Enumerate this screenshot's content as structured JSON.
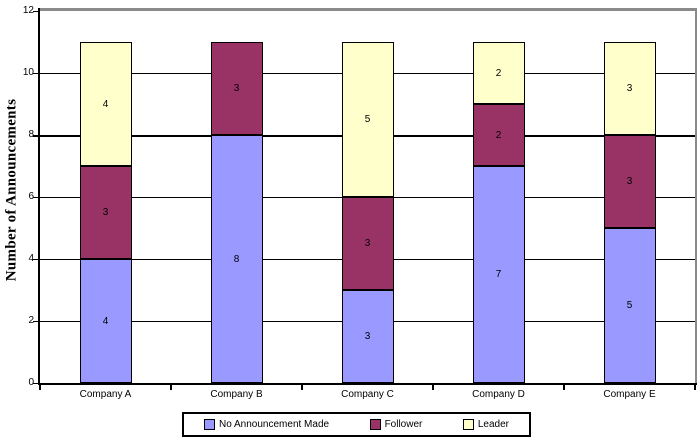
{
  "chart_data": {
    "type": "bar",
    "stacked": true,
    "title": "",
    "xlabel": "",
    "ylabel": "Number of Announcements",
    "categories": [
      "Company A",
      "Company B",
      "Company C",
      "Company D",
      "Company E"
    ],
    "series": [
      {
        "name": "No Announcement Made",
        "color": "#9999FF",
        "values": [
          4,
          8,
          3,
          7,
          5
        ]
      },
      {
        "name": "Follower",
        "color": "#993366",
        "values": [
          3,
          3,
          3,
          2,
          3
        ]
      },
      {
        "name": "Leader",
        "color": "#FFFFCC",
        "values": [
          4,
          0,
          5,
          2,
          3
        ]
      }
    ],
    "totals": [
      11,
      11,
      11,
      11,
      11
    ],
    "ylim": [
      0,
      12
    ],
    "yticks": [
      0,
      2,
      4,
      6,
      8,
      10,
      12
    ],
    "grid": true,
    "data_labels": true,
    "legend_position": "bottom"
  },
  "colors": {
    "grid": "#000000",
    "axis": "#000000",
    "plot_border": "#8a8a8a",
    "background": "#FFFFFF",
    "text": "#000000"
  }
}
